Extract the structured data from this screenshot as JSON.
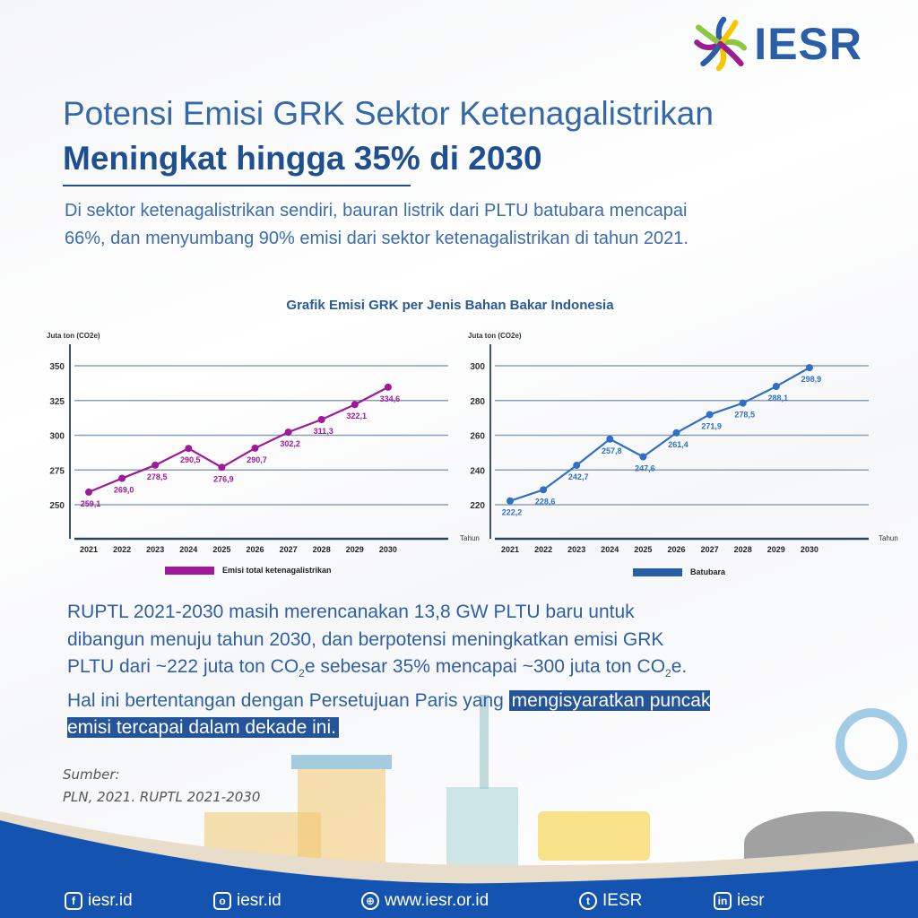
{
  "logo": {
    "text": "IESR",
    "colors": [
      "#2a5fa8",
      "#8dc63f",
      "#f7c600",
      "#9b1d91"
    ]
  },
  "title": {
    "line1": "Potensi Emisi GRK Sektor Ketenagalistrikan",
    "line2": "Meningkat hingga 35% di 2030"
  },
  "intro": "Di sektor ketenagalistrikan sendiri, bauran listrik dari PLTU batubara mencapai 66%, dan menyumbang 90% emisi dari sektor ketenagalistrikan di tahun 2021.",
  "chart_section_title": "Grafik Emisi GRK per Jenis Bahan Bakar Indonesia",
  "chart_data": [
    {
      "type": "line",
      "ylabel": "Juta ton (CO2e)",
      "xlabel": "Tahun",
      "categories": [
        "2021",
        "2022",
        "2023",
        "2024",
        "2025",
        "2026",
        "2027",
        "2028",
        "2029",
        "2030"
      ],
      "series": [
        {
          "name": "Emisi total ketenagalistrikan",
          "color": "#a0199a",
          "values": [
            259.1,
            269.0,
            278.5,
            290.5,
            276.9,
            290.7,
            302.2,
            311.3,
            322.1,
            334.6
          ],
          "labels": [
            "259,1",
            "269,0",
            "278,5",
            "290,5",
            "276,9",
            "290,7",
            "302,2",
            "311,3",
            "322,1",
            "334,6"
          ]
        }
      ],
      "yticks": [
        250,
        275,
        300,
        325,
        350
      ],
      "ylim": [
        225,
        360
      ],
      "grid": true,
      "legend": "bottom"
    },
    {
      "type": "line",
      "ylabel": "Juta ton (CO2e)",
      "xlabel": "Tahun",
      "categories": [
        "2021",
        "2022",
        "2023",
        "2024",
        "2025",
        "2026",
        "2027",
        "2028",
        "2029",
        "2030"
      ],
      "series": [
        {
          "name": "Batubara",
          "color": "#2f6fc4",
          "values": [
            222.2,
            228.6,
            242.7,
            257.8,
            247.6,
            261.4,
            271.9,
            278.5,
            288.1,
            298.9
          ],
          "labels": [
            "222,2",
            "228,6",
            "242,7",
            "257,8",
            "247,6",
            "261,4",
            "271,9",
            "278,5",
            "288,1",
            "298,9"
          ]
        }
      ],
      "yticks": [
        220,
        240,
        260,
        280,
        300
      ],
      "ylim": [
        200,
        310
      ],
      "grid": true,
      "legend": "bottom"
    }
  ],
  "body": {
    "part1": "RUPTL 2021-2030 masih merencanakan 13,8 GW PLTU baru untuk dibangun menuju tahun 2030, dan berpotensi meningkatkan emisi GRK PLTU dari ~222 juta ton CO",
    "sub1": "2",
    "part2": "e sebesar 35% mencapai ~300 juta ton CO",
    "sub2": "2",
    "part3": "e. Hal ini bertentangan dengan Persetujuan Paris yang ",
    "highlight": "mengisyaratkan puncak emisi tercapai dalam dekade ini."
  },
  "source": {
    "label": "Sumber:",
    "text": "PLN, 2021. RUPTL 2021-2030"
  },
  "footer": [
    {
      "icon": "facebook-icon",
      "glyph": "f",
      "text": "iesr.id"
    },
    {
      "icon": "instagram-icon",
      "glyph": "o",
      "text": "iesr.id"
    },
    {
      "icon": "globe-icon",
      "glyph": "⊕",
      "text": "www.iesr.or.id"
    },
    {
      "icon": "twitter-icon",
      "glyph": "t",
      "text": "IESR"
    },
    {
      "icon": "linkedin-icon",
      "glyph": "in",
      "text": "iesr"
    }
  ],
  "colors": {
    "brand_blue": "#1453b0",
    "title": "#1f4f8e"
  }
}
